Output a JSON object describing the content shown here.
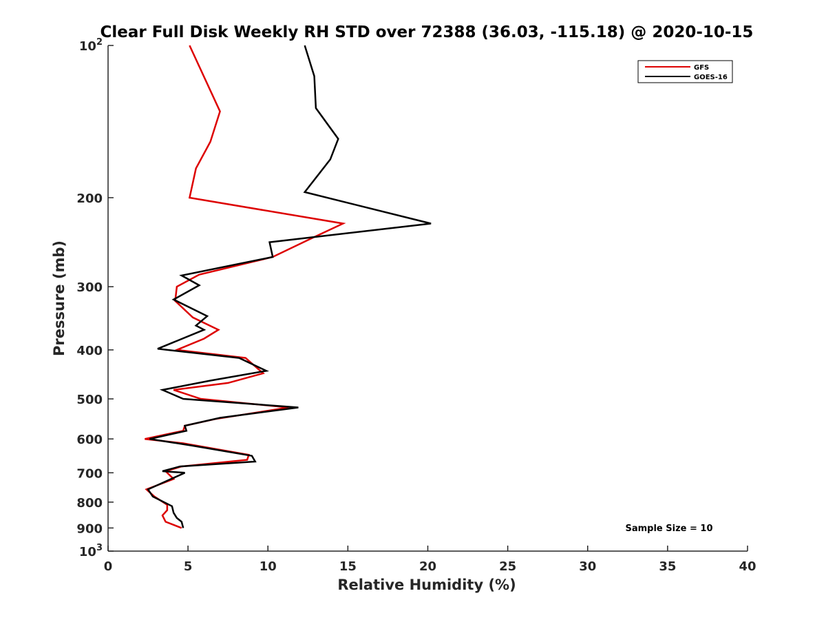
{
  "chart_data": {
    "type": "line",
    "title": "Clear Full Disk Weekly RH STD over 72388 (36.03, -115.18) @ 2020-10-15",
    "xlabel": "Relative Humidity (%)",
    "ylabel": "Pressure (mb)",
    "xlim": [
      0,
      40
    ],
    "ylim": [
      100,
      1000
    ],
    "y_scale": "log",
    "y_reversed": true,
    "grid": false,
    "legend_position": "top-right",
    "x_ticks": [
      0,
      5,
      10,
      15,
      20,
      25,
      30,
      35,
      40
    ],
    "y_ticks": [
      {
        "value": 100,
        "base": "10",
        "exp": "2"
      },
      {
        "value": 200,
        "label": "200"
      },
      {
        "value": 300,
        "label": "300"
      },
      {
        "value": 400,
        "label": "400"
      },
      {
        "value": 500,
        "label": "500"
      },
      {
        "value": 600,
        "label": "600"
      },
      {
        "value": 700,
        "label": "700"
      },
      {
        "value": 800,
        "label": "800"
      },
      {
        "value": 900,
        "label": "900"
      },
      {
        "value": 1000,
        "base": "10",
        "exp": "3"
      }
    ],
    "annotation": "Sample Size = 10",
    "series": [
      {
        "name": "GFS",
        "color": "#dd0000",
        "points": [
          [
            5.1,
            100
          ],
          [
            7.0,
            135
          ],
          [
            6.4,
            155
          ],
          [
            5.5,
            175
          ],
          [
            5.1,
            200
          ],
          [
            14.7,
            225
          ],
          [
            12.8,
            240
          ],
          [
            10.3,
            262
          ],
          [
            5.7,
            284
          ],
          [
            4.3,
            300
          ],
          [
            4.2,
            320
          ],
          [
            5.3,
            345
          ],
          [
            6.9,
            365
          ],
          [
            6.0,
            380
          ],
          [
            4.3,
            400
          ],
          [
            8.6,
            415
          ],
          [
            9.7,
            445
          ],
          [
            7.5,
            465
          ],
          [
            4.1,
            480
          ],
          [
            5.8,
            500
          ],
          [
            11.3,
            520
          ],
          [
            6.7,
            548
          ],
          [
            4.8,
            565
          ],
          [
            4.7,
            578
          ],
          [
            2.3,
            600
          ],
          [
            4.7,
            612
          ],
          [
            8.8,
            645
          ],
          [
            8.7,
            660
          ],
          [
            4.6,
            680
          ],
          [
            3.6,
            695
          ],
          [
            4.1,
            720
          ],
          [
            2.4,
            755
          ],
          [
            2.9,
            780
          ],
          [
            3.7,
            810
          ],
          [
            3.7,
            830
          ],
          [
            3.4,
            850
          ],
          [
            3.6,
            875
          ],
          [
            4.6,
            900
          ]
        ]
      },
      {
        "name": "GOES-16",
        "color": "#000000",
        "points": [
          [
            12.3,
            100
          ],
          [
            12.9,
            115
          ],
          [
            13.0,
            133
          ],
          [
            14.4,
            153
          ],
          [
            13.9,
            168
          ],
          [
            12.3,
            195
          ],
          [
            20.2,
            225
          ],
          [
            10.1,
            245
          ],
          [
            10.3,
            262
          ],
          [
            4.6,
            285
          ],
          [
            5.7,
            298
          ],
          [
            4.1,
            318
          ],
          [
            6.2,
            343
          ],
          [
            5.5,
            358
          ],
          [
            6.0,
            365
          ],
          [
            3.1,
            398
          ],
          [
            8.2,
            415
          ],
          [
            9.9,
            440
          ],
          [
            6.4,
            460
          ],
          [
            3.4,
            480
          ],
          [
            4.7,
            500
          ],
          [
            11.9,
            520
          ],
          [
            7.0,
            545
          ],
          [
            4.8,
            565
          ],
          [
            4.9,
            578
          ],
          [
            2.6,
            600
          ],
          [
            5.2,
            618
          ],
          [
            9.0,
            648
          ],
          [
            9.2,
            665
          ],
          [
            4.5,
            680
          ],
          [
            3.4,
            695
          ],
          [
            4.8,
            700
          ],
          [
            2.5,
            755
          ],
          [
            2.8,
            780
          ],
          [
            4.0,
            815
          ],
          [
            4.1,
            840
          ],
          [
            4.3,
            860
          ],
          [
            4.6,
            875
          ],
          [
            4.7,
            900
          ]
        ]
      }
    ]
  }
}
